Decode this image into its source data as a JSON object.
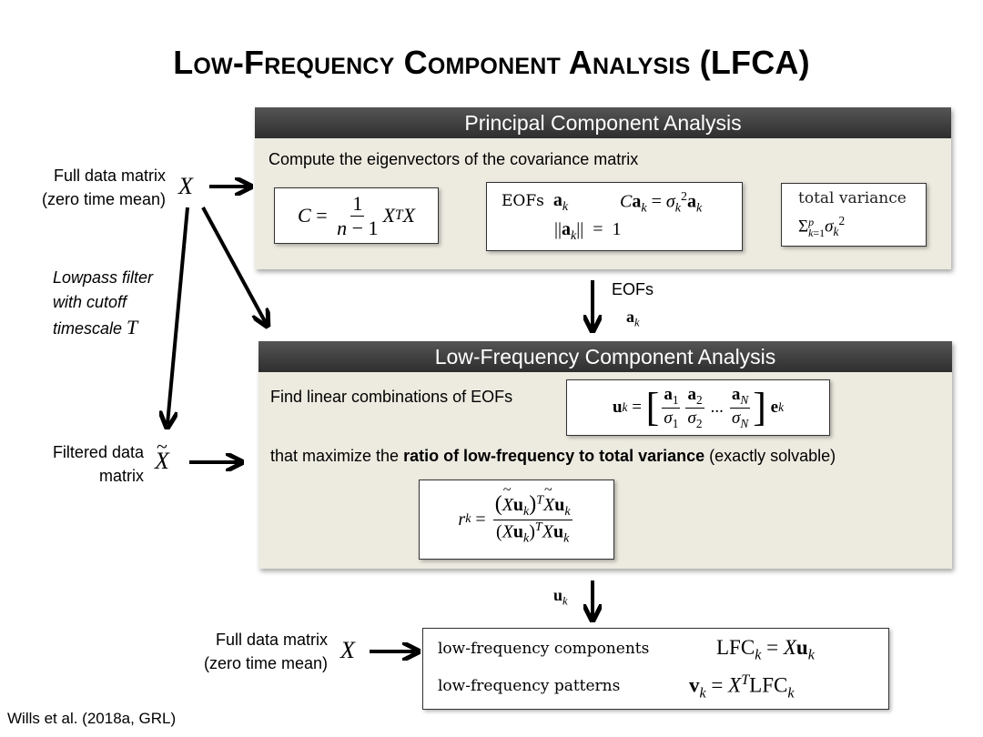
{
  "title": "Low-Frequency Component Analysis (LFCA)",
  "pca": {
    "header": "Principal Component Analysis",
    "subtitle": "Compute the eigenvectors of the covariance matrix",
    "eofs_label": "EOFs",
    "total_variance_label": "total variance"
  },
  "lfca": {
    "header": "Low-Frequency Component Analysis",
    "line1": "Find linear combinations of EOFs",
    "line2_pre": "that maximize the ",
    "line2_bold": "ratio of low-frequency to total variance",
    "line2_post": " (exactly solvable)",
    "ellipsis": "..."
  },
  "left": {
    "full_matrix_line1": "Full data matrix",
    "full_matrix_line2": "(zero time mean)",
    "lowpass_line1": "Lowpass filter",
    "lowpass_line2": "with cutoff",
    "lowpass_line3": "timescale",
    "filtered_line1": "Filtered data",
    "filtered_line2": "matrix"
  },
  "mid": {
    "eofs_arrow_label": "EOFs"
  },
  "bottom": {
    "full_matrix_line1": "Full data matrix",
    "full_matrix_line2": "(zero time mean)",
    "lfc_label": "low-frequency components",
    "patterns_label": "low-frequency patterns"
  },
  "citation": "Wills et al. (2018a, GRL)"
}
